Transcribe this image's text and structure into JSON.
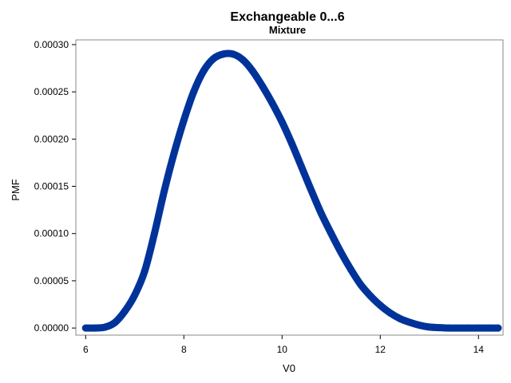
{
  "chart_data": {
    "type": "scatter",
    "title": "Exchangeable 0...6",
    "subtitle": "Mixture",
    "xlabel": "V0",
    "ylabel": "PMF",
    "xlim": [
      5.8,
      14.5
    ],
    "ylim": [
      -7.5e-06,
      0.000305
    ],
    "x_ticks": [
      6,
      8,
      10,
      12,
      14
    ],
    "x_tick_labels": [
      "6",
      "8",
      "10",
      "12",
      "14"
    ],
    "y_ticks": [
      0,
      5e-05,
      0.0001,
      0.00015,
      0.0002,
      0.00025,
      0.0003
    ],
    "y_tick_labels": [
      "0.00000",
      "0.00005",
      "0.00010",
      "0.00015",
      "0.00020",
      "0.00025",
      "0.00030"
    ],
    "series": [
      {
        "color": "#003399",
        "x": [
          6.0,
          6.2,
          6.4,
          6.6,
          6.8,
          7.0,
          7.2,
          7.4,
          7.6,
          7.8,
          8.0,
          8.2,
          8.4,
          8.6,
          8.8,
          9.0,
          9.2,
          9.4,
          9.6,
          9.8,
          10.0,
          10.2,
          10.4,
          10.6,
          10.8,
          11.0,
          11.2,
          11.4,
          11.6,
          11.8,
          12.0,
          12.2,
          12.4,
          12.6,
          12.8,
          13.0,
          13.2,
          13.4,
          13.6,
          13.8,
          14.0,
          14.2,
          14.4
        ],
        "y": [
          0.0,
          0.0,
          1e-06,
          6e-06,
          1.8e-05,
          3.5e-05,
          6e-05,
          0.0001,
          0.000145,
          0.000185,
          0.00022,
          0.00025,
          0.000272,
          0.000285,
          0.00029,
          0.00029,
          0.000284,
          0.000272,
          0.000256,
          0.000238,
          0.000218,
          0.000195,
          0.00017,
          0.000145,
          0.000121,
          0.0001,
          8e-05,
          6.2e-05,
          4.6e-05,
          3.4e-05,
          2.4e-05,
          1.6e-05,
          1e-05,
          6e-06,
          3e-06,
          1e-06,
          4e-07,
          0.0,
          0.0,
          0.0,
          0.0,
          0.0,
          0.0
        ]
      }
    ]
  }
}
